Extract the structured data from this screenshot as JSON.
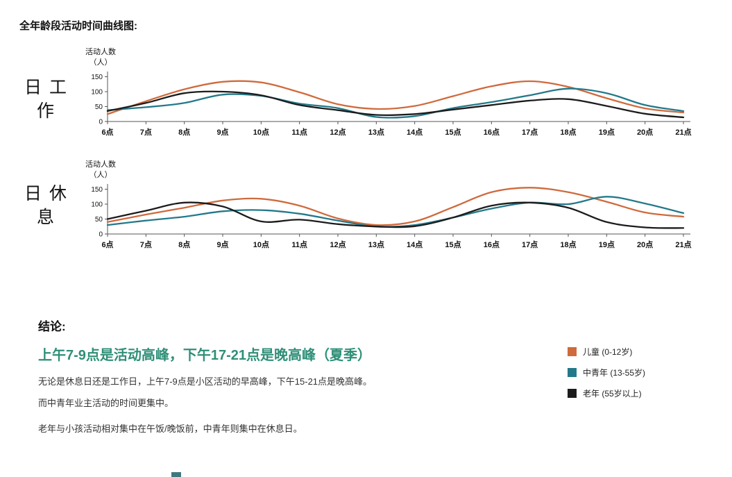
{
  "page": {
    "title": "全年龄段活动时间曲线图:"
  },
  "chart_data": [
    {
      "type": "line",
      "title": "日工作",
      "ylabel_lines": [
        "活动人数",
        "（人）"
      ],
      "categories": [
        "6点",
        "7点",
        "8点",
        "9点",
        "10点",
        "11点",
        "12点",
        "13点",
        "14点",
        "15点",
        "16点",
        "17点",
        "18点",
        "19点",
        "20点",
        "21点"
      ],
      "yticks": [
        0,
        50,
        100,
        150
      ],
      "ylim": [
        0,
        175
      ],
      "grid": false,
      "legend_position": "shared-bottom-right",
      "series": [
        {
          "name": "儿童 (0-12岁)",
          "color": "#cf6a3c",
          "values": [
            25,
            68,
            108,
            133,
            131,
            98,
            58,
            42,
            52,
            85,
            118,
            135,
            116,
            78,
            44,
            30
          ]
        },
        {
          "name": "中青年 (13-55岁)",
          "color": "#23798a",
          "values": [
            38,
            48,
            62,
            90,
            86,
            60,
            45,
            15,
            18,
            45,
            65,
            88,
            110,
            95,
            55,
            35
          ]
        },
        {
          "name": "老年 (55岁以上)",
          "color": "#1c1c1c",
          "values": [
            35,
            62,
            95,
            100,
            88,
            55,
            38,
            22,
            25,
            40,
            55,
            70,
            75,
            52,
            26,
            14
          ]
        }
      ]
    },
    {
      "type": "line",
      "title": "日休息",
      "ylabel_lines": [
        "活动人数",
        "（人）"
      ],
      "categories": [
        "6点",
        "7点",
        "8点",
        "9点",
        "10点",
        "11点",
        "12点",
        "13点",
        "14点",
        "15点",
        "16点",
        "17点",
        "18点",
        "19点",
        "20点",
        "21点"
      ],
      "yticks": [
        0,
        50,
        100,
        150
      ],
      "ylim": [
        0,
        175
      ],
      "grid": false,
      "legend_position": "shared-bottom-right",
      "series": [
        {
          "name": "儿童 (0-12岁)",
          "color": "#cf6a3c",
          "values": [
            40,
            65,
            88,
            112,
            118,
            95,
            52,
            30,
            42,
            90,
            140,
            155,
            140,
            108,
            72,
            58
          ]
        },
        {
          "name": "中青年 (13-55岁)",
          "color": "#23798a",
          "values": [
            30,
            45,
            58,
            76,
            80,
            68,
            45,
            25,
            30,
            55,
            85,
            105,
            100,
            125,
            102,
            70
          ]
        },
        {
          "name": "老年 (55岁以上)",
          "color": "#1c1c1c",
          "values": [
            50,
            78,
            105,
            92,
            42,
            48,
            33,
            25,
            26,
            55,
            95,
            105,
            88,
            40,
            22,
            20
          ]
        }
      ]
    }
  ],
  "conclusion": {
    "heading": "结论:",
    "highlight": "上午7-9点是活动高峰，下午17-21点是晚高峰（夏季）",
    "highlight_color": "#2f8f78",
    "line1": "无论是休息日还是工作日，上午7-9点是小区活动的早高峰，下午15-21点是晚高峰。",
    "line2": "而中青年业主活动的时间更集中。",
    "line3": "老年与小孩活动相对集中在午饭/晚饭前，中青年则集中在休息日。"
  },
  "legend": {
    "items": [
      {
        "label": "儿童 (0-12岁)",
        "color": "#cf6a3c"
      },
      {
        "label": "中青年 (13-55岁)",
        "color": "#23798a"
      },
      {
        "label": "老年 (55岁以上)",
        "color": "#1c1c1c"
      }
    ]
  }
}
